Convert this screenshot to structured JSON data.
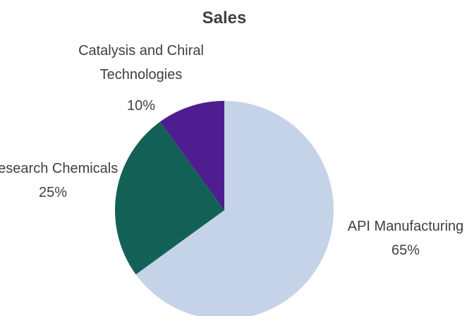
{
  "chart_data": {
    "type": "pie",
    "title": "Sales",
    "categories": [
      "API Manufacturing",
      "Research Chemicals",
      "Catalysis and Chiral Technologies"
    ],
    "values": [
      65,
      25,
      10
    ],
    "value_labels": [
      "65%",
      "25%",
      "10%"
    ],
    "colors": [
      "#c5d3e8",
      "#136156",
      "#4e1d8f"
    ]
  }
}
